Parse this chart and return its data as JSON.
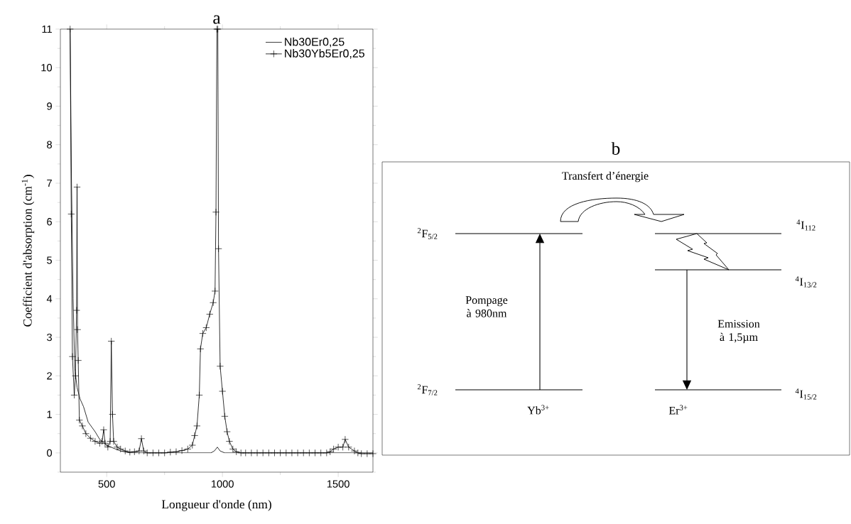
{
  "chart_data": [
    {
      "type": "line",
      "title": "a",
      "xlabel": "Longueur d'onde (nm)",
      "ylabel": "Coefficient d'absorption (cm$^{-1}$)",
      "xlim": [
        300,
        1650
      ],
      "ylim": [
        -0.5,
        11
      ],
      "xticks": [
        500,
        {
          "value": 750,
          "label": null
        },
        1000,
        {
          "value": 1250,
          "label": null
        },
        1500
      ],
      "yticks": [
        {
          "value": -0.5,
          "label": null
        },
        0,
        {
          "value": 0.5,
          "label": null
        },
        1,
        {
          "value": 1.5,
          "label": null
        },
        2,
        {
          "value": 2.5,
          "label": null
        },
        3,
        {
          "value": 3.5,
          "label": null
        },
        4,
        {
          "value": 4.5,
          "label": null
        },
        5,
        {
          "value": 5.5,
          "label": null
        },
        6,
        {
          "value": 6.5,
          "label": null
        },
        7,
        {
          "value": 7.5,
          "label": null
        },
        8,
        {
          "value": 8.5,
          "label": null
        },
        9,
        {
          "value": 9.5,
          "label": null
        },
        10,
        {
          "value": 10.5,
          "label": null
        },
        11
      ],
      "grid": false,
      "legend": "top right",
      "line_style": "solid",
      "series": [
        {
          "name": "Nb30Er0,25",
          "color": "#000000",
          "marker": "none",
          "x": [
            342,
            348,
            355,
            362,
            372,
            385,
            400,
            420,
            450,
            470,
            500,
            530,
            560,
            600,
            950,
            965,
            978,
            990,
            1010,
            1650
          ],
          "values": [
            11,
            7,
            4,
            2.2,
            1.7,
            1.4,
            1.2,
            0.8,
            0.55,
            0.35,
            0.2,
            0.12,
            0.05,
            0,
            0,
            0.05,
            0.15,
            0.05,
            0,
            0
          ]
        },
        {
          "name": "Nb30Yb5Er0,25",
          "color": "#000000",
          "marker": "cross",
          "x": [
            342,
            347,
            352,
            360,
            365,
            370,
            372,
            374,
            377,
            382,
            395,
            410,
            430,
            450,
            470,
            480,
            487,
            493,
            505,
            515,
            520,
            525,
            530,
            545,
            560,
            580,
            600,
            620,
            640,
            650,
            660,
            675,
            700,
            725,
            750,
            775,
            800,
            825,
            850,
            870,
            880,
            890,
            900,
            905,
            915,
            930,
            945,
            960,
            968,
            972,
            976,
            980,
            983,
            990,
            1000,
            1010,
            1020,
            1030,
            1045,
            1060,
            1080,
            1100,
            1125,
            1150,
            1175,
            1200,
            1225,
            1250,
            1275,
            1300,
            1325,
            1350,
            1375,
            1400,
            1425,
            1450,
            1465,
            1480,
            1500,
            1520,
            1530,
            1545,
            1570,
            1585,
            1600,
            1625,
            1650
          ],
          "values": [
            11,
            6.2,
            2.5,
            1.5,
            2.0,
            3.7,
            6.9,
            3.2,
            2.4,
            0.85,
            0.7,
            0.5,
            0.38,
            0.3,
            0.25,
            0.3,
            0.6,
            0.25,
            0.15,
            0.3,
            2.9,
            1.0,
            0.3,
            0.15,
            0.1,
            0.05,
            0.02,
            0.03,
            0.05,
            0.37,
            0.05,
            0,
            0,
            0,
            0,
            0.02,
            0.03,
            0.06,
            0.1,
            0.2,
            0.45,
            0.7,
            1.5,
            2.7,
            3.1,
            3.25,
            3.6,
            3.9,
            4.2,
            6.25,
            11,
            11,
            5.3,
            2.25,
            1.6,
            0.95,
            0.55,
            0.3,
            0.1,
            0.03,
            0,
            0,
            0,
            0,
            0,
            0,
            0,
            0,
            0,
            0,
            0,
            0,
            0,
            0,
            0,
            0,
            0.03,
            0.1,
            0.15,
            0.15,
            0.35,
            0.15,
            0.05,
            0,
            -0.02,
            -0.02,
            -0.02
          ]
        }
      ]
    },
    {
      "type": "other",
      "title": "b",
      "annotations": [
        "Transfert d’énergie",
        "$^{2}$F$_{5/2}$",
        "$^{4}$I$_{112}$",
        "$^{4}$I$_{13/2}$",
        "Pompage à 980nm",
        "Emission à 1,5µm",
        "$^{2}$F$_{7/2}$",
        "$^{4}$I$_{15/2}$",
        "Yb$^{3+}$",
        "Er$^{3+}$"
      ]
    }
  ]
}
